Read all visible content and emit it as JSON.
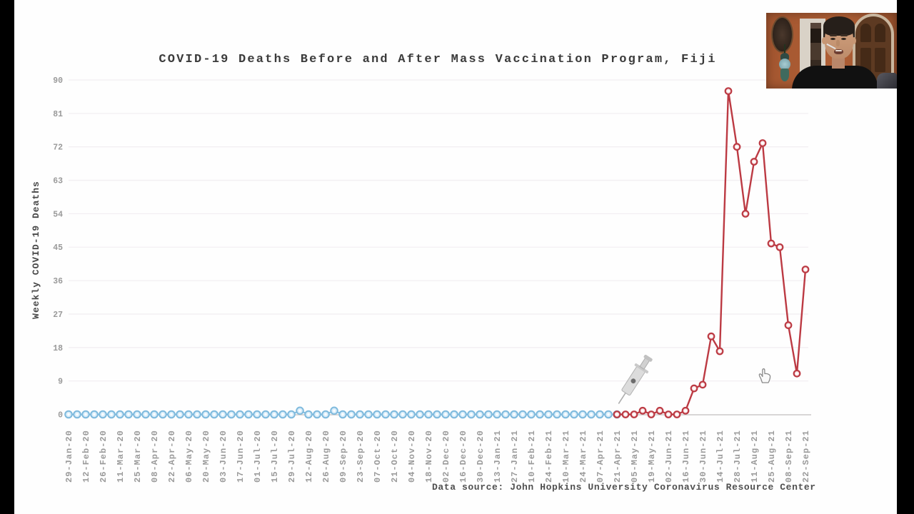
{
  "slide": {
    "title": "COVID-19 Deaths Before and After Mass Vaccination Program, Fiji",
    "source_note": "Data source: John Hopkins University Coronavirus Resource Center"
  },
  "chart_data": {
    "type": "line",
    "title": "COVID-19 Deaths Before and After Mass Vaccination Program, Fiji",
    "xlabel": "",
    "ylabel": "Weekly COVID-19 Deaths",
    "ylim": [
      0,
      90
    ],
    "yticks": [
      0,
      9,
      18,
      27,
      36,
      45,
      54,
      63,
      72,
      81,
      90
    ],
    "grid": "horizontal very light gridlines at each y tick",
    "legend": "none",
    "x_start": "29-Jan-20",
    "x_end": "22-Sep-21",
    "x_weeks_total": 87,
    "x_tick_labels": [
      "29-Jan-20",
      "12-Feb-20",
      "26-Feb-20",
      "11-Mar-20",
      "25-Mar-20",
      "08-Apr-20",
      "22-Apr-20",
      "06-May-20",
      "20-May-20",
      "03-Jun-20",
      "17-Jun-20",
      "01-Jul-20",
      "15-Jul-20",
      "29-Jul-20",
      "12-Aug-20",
      "26-Aug-20",
      "09-Sep-20",
      "23-Sep-20",
      "07-Oct-20",
      "21-Oct-20",
      "04-Nov-20",
      "18-Nov-20",
      "02-Dec-20",
      "16-Dec-20",
      "30-Dec-20",
      "13-Jan-21",
      "27-Jan-21",
      "10-Feb-21",
      "24-Feb-21",
      "10-Mar-21",
      "24-Mar-21",
      "07-Apr-21",
      "21-Apr-21",
      "05-May-21",
      "19-May-21",
      "02-Jun-21",
      "16-Jun-21",
      "30-Jun-21",
      "14-Jul-21",
      "28-Jul-21",
      "11-Aug-21",
      "25-Aug-21",
      "08-Sep-21",
      "22-Sep-21"
    ],
    "series": [
      {
        "name": "weekly deaths before mass vaccination program",
        "color": "#7fbadd",
        "start_week": 0,
        "values": [
          0,
          0,
          0,
          0,
          0,
          0,
          0,
          0,
          0,
          0,
          0,
          0,
          0,
          0,
          0,
          0,
          0,
          0,
          0,
          0,
          0,
          0,
          0,
          0,
          0,
          0,
          0,
          1,
          0,
          0,
          0,
          1,
          0,
          0,
          0,
          0,
          0,
          0,
          0,
          0,
          0,
          0,
          0,
          0,
          0,
          0,
          0,
          0,
          0,
          0,
          0,
          0,
          0,
          0,
          0,
          0,
          0,
          0,
          0,
          0,
          0,
          0,
          0,
          0,
          0
        ]
      },
      {
        "name": "weekly deaths after mass vaccination program start",
        "color": "#bc3a43",
        "start_week": 64,
        "values": [
          0,
          0,
          0,
          1,
          0,
          1,
          0,
          0,
          1,
          7,
          8,
          21,
          17,
          87,
          72,
          54,
          68,
          73,
          46,
          45,
          24,
          11,
          39
        ]
      }
    ],
    "annotations": [
      {
        "id": "syringe",
        "meaning": "start of mass vaccination program",
        "at_label": "21-Apr-21"
      }
    ]
  },
  "cursor": {
    "type": "hand-pointer"
  },
  "colors": {
    "pre_series": "#7fbadd",
    "post_series": "#bc3a43",
    "gridline": "#f2eff2",
    "axis": "#cbc8c8",
    "tick_text": "#9a9a9a"
  }
}
